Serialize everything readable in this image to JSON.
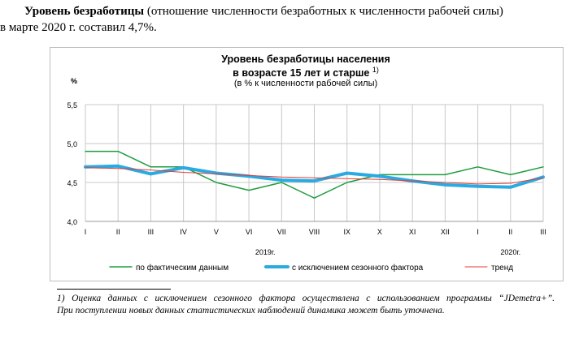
{
  "intro": {
    "bold": "Уровень безработицы",
    "rest1": " (отношение численности безработных к численности рабочей силы)",
    "line2": "в марте 2020 г. составил 4,7%."
  },
  "chart_title_1": "Уровень безработицы населения",
  "chart_title_2": "в возрасте 15 лет и старше",
  "chart_title_2_sup": "1)",
  "chart_subtitle": "(в % к численности рабочей силы)",
  "chart_data": {
    "type": "line",
    "title": "Уровень безработицы населения в возрасте 15 лет и старше",
    "subtitle": "(в % к численности рабочей силы)",
    "ylabel": "%",
    "ylim": [
      4.0,
      5.5
    ],
    "yticks": [
      "4,0",
      "4,5",
      "5,0",
      "5,5"
    ],
    "categories": [
      "I",
      "II",
      "III",
      "IV",
      "V",
      "VI",
      "VII",
      "VIII",
      "IX",
      "X",
      "XI",
      "XII",
      "I",
      "II",
      "III"
    ],
    "year_labels": [
      {
        "label": "2019г.",
        "at_index": 5.5
      },
      {
        "label": "2020г.",
        "at_index": 13
      }
    ],
    "grid": true,
    "legend_position": "bottom",
    "series": [
      {
        "name": "по фактическим данным",
        "color": "#1e9e3e",
        "width": 1.5,
        "values": [
          4.9,
          4.9,
          4.7,
          4.7,
          4.5,
          4.4,
          4.5,
          4.3,
          4.5,
          4.6,
          4.6,
          4.6,
          4.7,
          4.6,
          4.7
        ]
      },
      {
        "name": "с исключением сезонного фактора",
        "color": "#29abe2",
        "width": 4,
        "values": [
          4.7,
          4.71,
          4.61,
          4.69,
          4.62,
          4.58,
          4.53,
          4.52,
          4.62,
          4.58,
          4.52,
          4.47,
          4.45,
          4.44,
          4.57
        ]
      },
      {
        "name": "тренд",
        "color": "#e53935",
        "width": 1,
        "values": [
          4.69,
          4.68,
          4.66,
          4.63,
          4.61,
          4.59,
          4.57,
          4.56,
          4.55,
          4.54,
          4.52,
          4.5,
          4.48,
          4.49,
          4.56
        ]
      }
    ]
  },
  "footnote": {
    "line1": "1) Оценка данных с исключением сезонного фактора осуществлена с использованием программы “JDemetra+”.",
    "line2": "При поступлении новых данных статистических наблюдений динамика может быть уточнена."
  }
}
